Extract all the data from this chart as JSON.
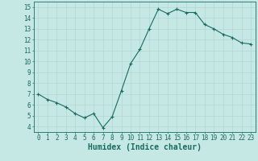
{
  "x": [
    0,
    1,
    2,
    3,
    4,
    5,
    6,
    7,
    8,
    9,
    10,
    11,
    12,
    13,
    14,
    15,
    16,
    17,
    18,
    19,
    20,
    21,
    22,
    23
  ],
  "y": [
    7.0,
    6.5,
    6.2,
    5.8,
    5.2,
    4.8,
    5.2,
    3.9,
    4.9,
    7.3,
    9.8,
    11.1,
    13.0,
    14.8,
    14.4,
    14.8,
    14.5,
    14.5,
    13.4,
    13.0,
    12.5,
    12.2,
    11.7,
    11.6
  ],
  "line_color": "#1a6b5e",
  "bg_color": "#c5e8e5",
  "grid_color": "#b0d8d2",
  "xlabel": "Humidex (Indice chaleur)",
  "xlim": [
    -0.5,
    23.5
  ],
  "ylim": [
    3.5,
    15.5
  ],
  "yticks": [
    4,
    5,
    6,
    7,
    8,
    9,
    10,
    11,
    12,
    13,
    14,
    15
  ],
  "xticks": [
    0,
    1,
    2,
    3,
    4,
    5,
    6,
    7,
    8,
    9,
    10,
    11,
    12,
    13,
    14,
    15,
    16,
    17,
    18,
    19,
    20,
    21,
    22,
    23
  ],
  "marker": "+",
  "marker_size": 3,
  "line_width": 0.8,
  "xlabel_fontsize": 7,
  "tick_fontsize": 5.5,
  "tick_color": "#1a6b5e",
  "axis_color": "#1a6b5e"
}
